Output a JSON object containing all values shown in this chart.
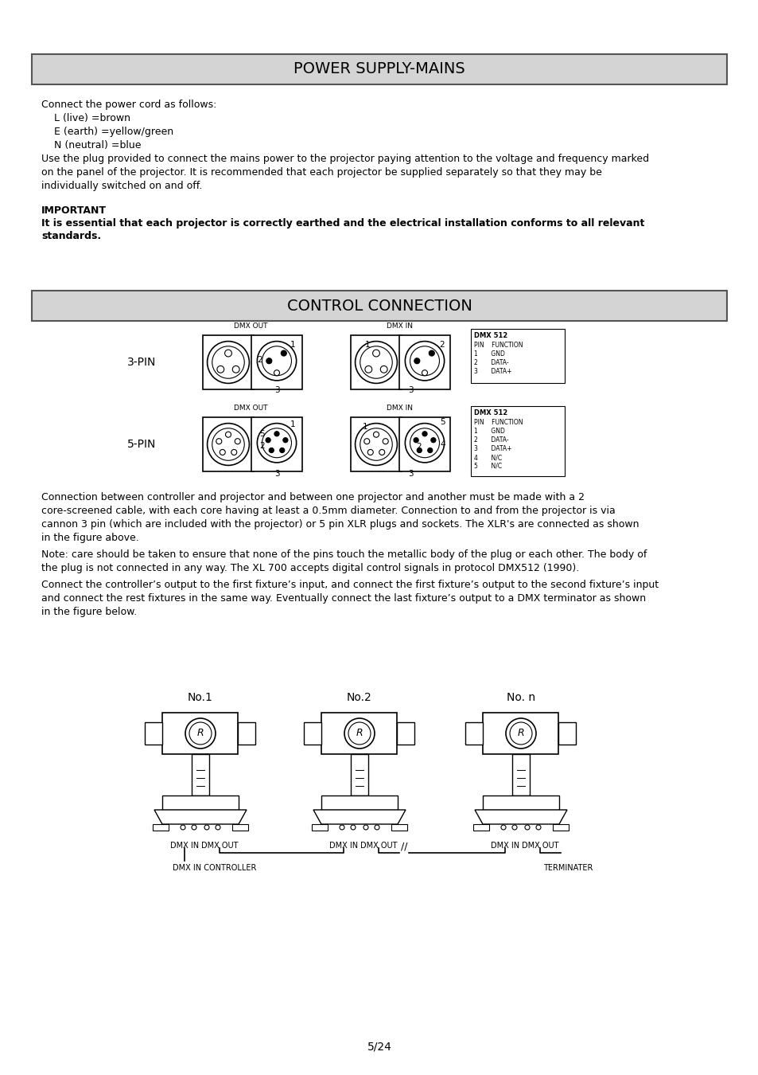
{
  "page_background": "#ffffff",
  "title1": "POWER SUPPLY-MAINS",
  "title2": "CONTROL CONNECTION",
  "header_bg": "#d4d4d4",
  "header_border": "#555555",
  "power_supply_lines": [
    "Connect the power cord as follows:",
    "    L (live) =brown",
    "    E (earth) =yellow/green",
    "    N (neutral) =blue",
    "Use the plug provided to connect the mains power to the projector paying attention to the voltage and frequency marked",
    "on the panel of the projector. It is recommended that each projector be supplied separately so that they may be",
    "individually switched on and off."
  ],
  "important_label": "IMPORTANT",
  "important_line1": "It is essential that each projector is correctly earthed and the electrical installation conforms to all relevant",
  "important_line2": "standards.",
  "conn_para1_lines": [
    "Connection between controller and projector and between one projector and another must be made with a 2",
    "core-screened cable, with each core having at least a 0.5mm diameter. Connection to and from the projector is via",
    "cannon 3 pin (which are included with the projector) or 5 pin XLR plugs and sockets. The XLR's are connected as shown",
    "in the figure above."
  ],
  "conn_para2_lines": [
    "Note: care should be taken to ensure that none of the pins touch the metallic body of the plug or each other. The body of",
    "the plug is not connected in any way. The XL 700 accepts digital control signals in protocol DMX512 (1990)."
  ],
  "conn_para3_lines": [
    "Connect the controller’s output to the first fixture’s input, and connect the first fixture’s output to the second fixture’s input",
    "and connect the rest fixtures in the same way. Eventually connect the last fixture’s output to a DMX terminator as shown",
    "in the figure below."
  ],
  "page_number": "5/24",
  "dmx512_3pin_header": "DMX 512",
  "dmx512_3pin_rows": [
    "PIN    FUNCTION",
    "1       GND",
    "2       DATA-",
    "3       DATA+"
  ],
  "dmx512_5pin_header": "DMX 512",
  "dmx512_5pin_rows": [
    "PIN    FUNCTION",
    "1       GND",
    "2       DATA-",
    "3       DATA+",
    "4       N/C",
    "5       N/C"
  ]
}
